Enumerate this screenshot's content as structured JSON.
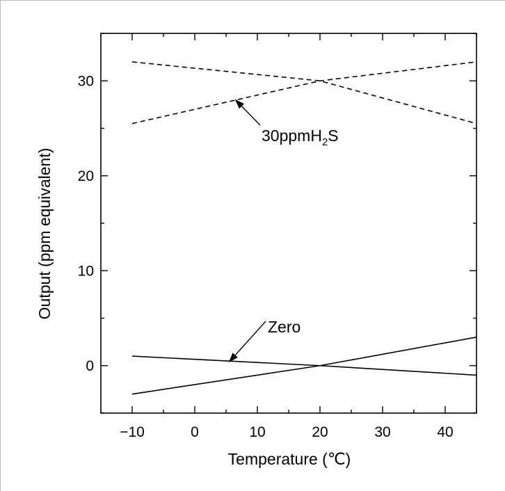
{
  "chart_data": {
    "type": "line",
    "xlabel": "Temperature (℃)",
    "ylabel": "Output (ppm equivalent)",
    "xlim": [
      -15,
      45
    ],
    "ylim": [
      -5,
      35
    ],
    "x_ticks": [
      -10,
      0,
      10,
      20,
      30,
      40
    ],
    "y_ticks": [
      0,
      10,
      20,
      30
    ],
    "x_tick_labels": [
      "−10",
      "0",
      "10",
      "20",
      "30",
      "40"
    ],
    "y_tick_labels": [
      "0",
      "10",
      "20",
      "30"
    ],
    "minor_x_step": 5,
    "minor_y_step": 5,
    "grid": false,
    "series": [
      {
        "style": "dashed",
        "x": [
          -10,
          20,
          45
        ],
        "y": [
          32,
          30,
          25.5
        ]
      },
      {
        "style": "dashed",
        "x": [
          -10,
          20,
          45
        ],
        "y": [
          25.5,
          30,
          32
        ]
      },
      {
        "style": "solid",
        "x": [
          -10,
          20,
          45
        ],
        "y": [
          1,
          0,
          -1
        ]
      },
      {
        "style": "solid",
        "x": [
          -10,
          20,
          45
        ],
        "y": [
          -3,
          0,
          3
        ]
      }
    ],
    "annotations": [
      {
        "text_main": "30ppmH",
        "text_sub": "2",
        "text_tail": "S",
        "arrow_to": [
          6.5,
          28
        ]
      },
      {
        "text_main": "Zero",
        "text_sub": "",
        "text_tail": "",
        "arrow_to": [
          5.5,
          0.4
        ]
      }
    ]
  }
}
